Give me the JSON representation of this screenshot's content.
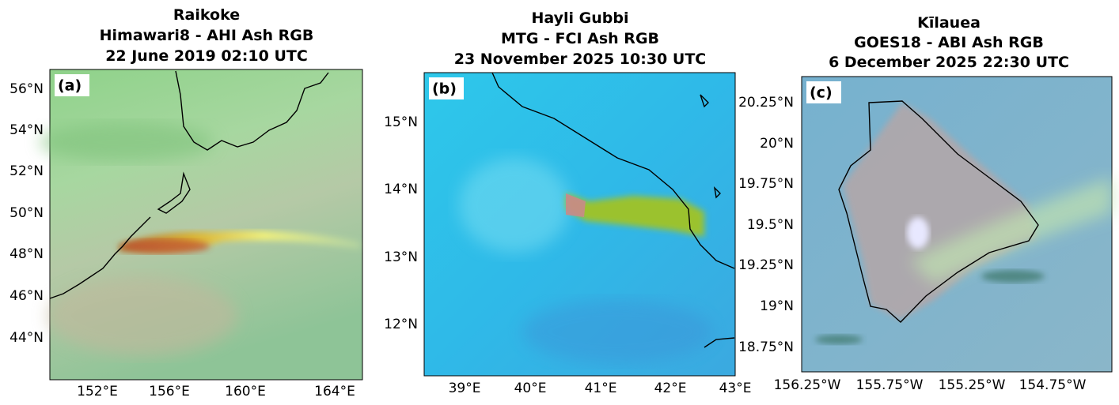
{
  "panels": [
    {
      "title": [
        "Raikoke",
        "Himawari8 - AHI Ash RGB",
        "22 June 2019 02:10 UTC"
      ],
      "label": "(a)",
      "yticks": [
        "56°N",
        "54°N",
        "52°N",
        "50°N",
        "48°N",
        "46°N",
        "44°N"
      ],
      "xticks": [
        "152°E",
        "156°E",
        "160°E",
        "164°E"
      ]
    },
    {
      "title": [
        "Hayli Gubbi",
        "MTG - FCI Ash RGB",
        "23 November 2025 10:30 UTC"
      ],
      "label": "(b)",
      "yticks": [
        "15°N",
        "14°N",
        "13°N",
        "12°N"
      ],
      "xticks": [
        "39°E",
        "40°E",
        "41°E",
        "42°E",
        "43°E"
      ]
    },
    {
      "title": [
        "Kīlauea",
        "GOES18 - ABI Ash RGB",
        "6 December 2025 22:30 UTC"
      ],
      "label": "(c)",
      "yticks": [
        "20.25°N",
        "20°N",
        "19.75°N",
        "19.5°N",
        "19.25°N",
        "19°N",
        "18.75°N"
      ],
      "xticks": [
        "156.25°W",
        "155.75°W",
        "155.25°W",
        "154.75°W"
      ]
    }
  ]
}
